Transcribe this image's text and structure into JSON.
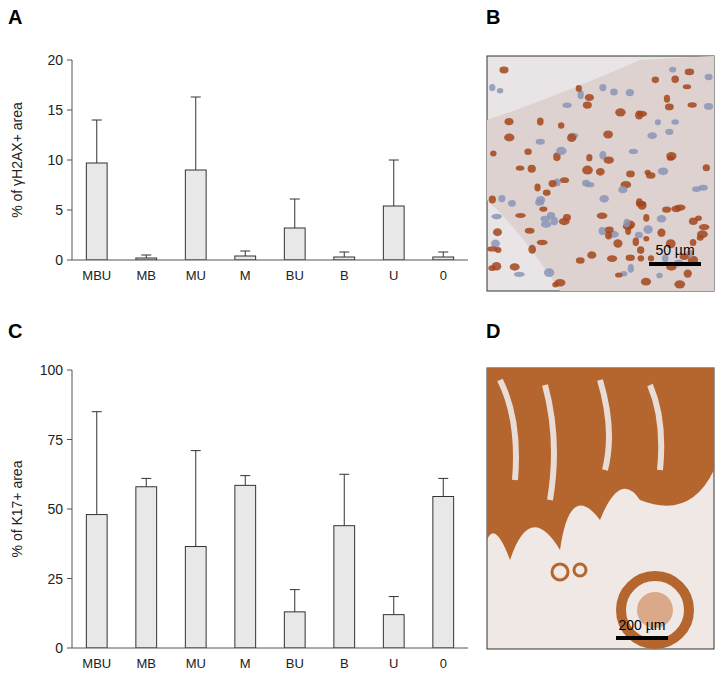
{
  "chart_data": [
    {
      "type": "bar",
      "y_label": "% of γH2AX+ area",
      "categories": [
        "MBU",
        "MB",
        "MU",
        "M",
        "BU",
        "B",
        "U",
        "0"
      ],
      "values": [
        9.7,
        0.2,
        9.0,
        0.4,
        3.2,
        0.3,
        5.4,
        0.3
      ],
      "errors": [
        4.3,
        0.3,
        7.3,
        0.5,
        2.9,
        0.5,
        4.6,
        0.5
      ],
      "color": "#e8e8e8",
      "ylim": [
        0,
        20
      ],
      "yticks": [
        0,
        5,
        10,
        15,
        20
      ],
      "grid": false
    },
    {
      "type": "bar",
      "y_label": "% of K17+ area",
      "categories": [
        "MBU",
        "MB",
        "MU",
        "M",
        "BU",
        "B",
        "U",
        "0"
      ],
      "values": [
        48,
        58,
        36.5,
        58.5,
        13,
        44,
        12,
        54.5
      ],
      "errors": [
        37,
        3,
        34.5,
        3.5,
        8,
        18.5,
        6.5,
        6.5
      ],
      "color": "#e8e8e8",
      "ylim": [
        0,
        100
      ],
      "yticks": [
        0,
        25,
        50,
        75,
        100
      ],
      "grid": false
    }
  ],
  "figure": {
    "panels": [
      "A",
      "B",
      "C",
      "D"
    ],
    "scale_bars": [
      "50 µm",
      "200 µm"
    ]
  }
}
